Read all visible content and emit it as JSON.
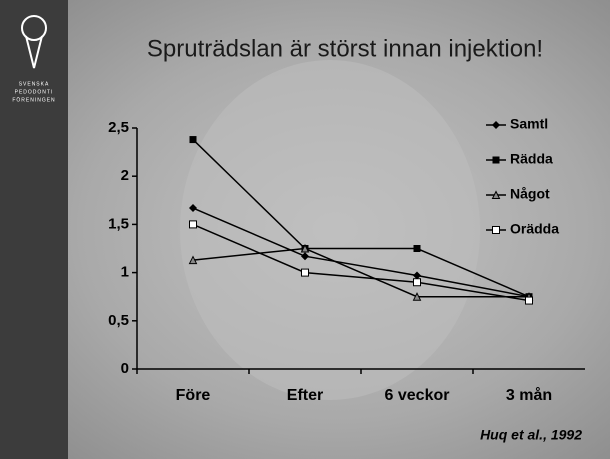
{
  "logo": [
    "SVENSKA",
    "PEDODONTI",
    "FÖRENINGEN"
  ],
  "chart_data": {
    "type": "line",
    "title": "Spruträdslan är störst innan injektion!",
    "annotation": "Huq et al., 1992",
    "categories": [
      "Före",
      "Efter",
      "6 veckor",
      "3 mån"
    ],
    "ylim": [
      0,
      2.5
    ],
    "yticks": [
      0,
      {
        "value": 0.5,
        "label": "0,5"
      },
      1,
      {
        "value": 1.5,
        "label": "1,5"
      },
      2,
      {
        "value": 2.5,
        "label": "2,5"
      }
    ],
    "legend": "top-right",
    "series": [
      {
        "name": "Samtl",
        "color": "#000000",
        "marker": "diamond",
        "values": [
          1.67,
          1.17,
          0.97,
          0.75
        ]
      },
      {
        "name": "Rädda",
        "color": "#000000",
        "marker": "square",
        "values": [
          2.38,
          1.25,
          1.25,
          0.75
        ]
      },
      {
        "name": "Något",
        "color": "#000000",
        "marker": "triangle",
        "values": [
          1.13,
          1.25,
          0.75,
          0.75
        ]
      },
      {
        "name": "Orädda",
        "color": "#000000",
        "marker": "square-open",
        "values": [
          1.5,
          1.0,
          0.9,
          0.71
        ]
      }
    ]
  }
}
